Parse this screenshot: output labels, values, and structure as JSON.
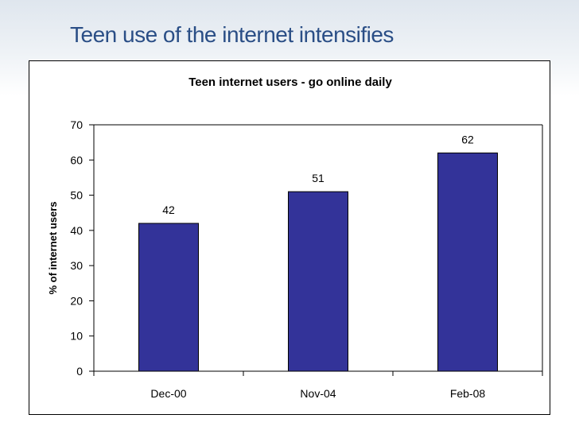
{
  "slide": {
    "title": "Teen use of the internet intensifies"
  },
  "chart_data": {
    "type": "bar",
    "title": "Teen internet users - go online daily",
    "categories": [
      "Dec-00",
      "Nov-04",
      "Feb-08"
    ],
    "values": [
      42,
      51,
      62
    ],
    "xlabel": "",
    "ylabel": "% of internet users",
    "ylim": [
      0,
      70
    ],
    "yticks": [
      0,
      10,
      20,
      30,
      40,
      50,
      60,
      70
    ],
    "bar_color": "#333399",
    "legend": "none"
  }
}
